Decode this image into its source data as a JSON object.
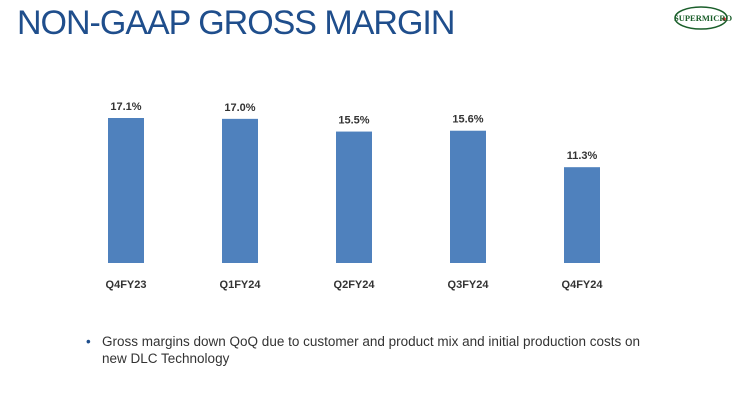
{
  "slide": {
    "title": "NON-GAAP GROSS MARGIN",
    "logo_text": "SUPERMICRO",
    "bullet_symbol": "•",
    "bullet_text": "Gross margins down QoQ due to customer and product mix and initial production costs on new DLC Technology"
  },
  "colors": {
    "title": "#1f4e8c",
    "bar": "#4f81bd",
    "text": "#333333",
    "logo_green": "#1a5e2a",
    "logo_red": "#d0202a"
  },
  "chart_data": {
    "type": "bar",
    "title": "",
    "xlabel": "",
    "ylabel": "",
    "categories": [
      "Q4FY23",
      "Q1FY24",
      "Q2FY24",
      "Q3FY24",
      "Q4FY24"
    ],
    "values": [
      17.1,
      17.0,
      15.5,
      15.6,
      11.3
    ],
    "value_labels": [
      "17.1%",
      "17.0%",
      "15.5%",
      "15.6%",
      "11.3%"
    ],
    "ylim": [
      0,
      17.1
    ],
    "grid": false,
    "legend": "none"
  }
}
